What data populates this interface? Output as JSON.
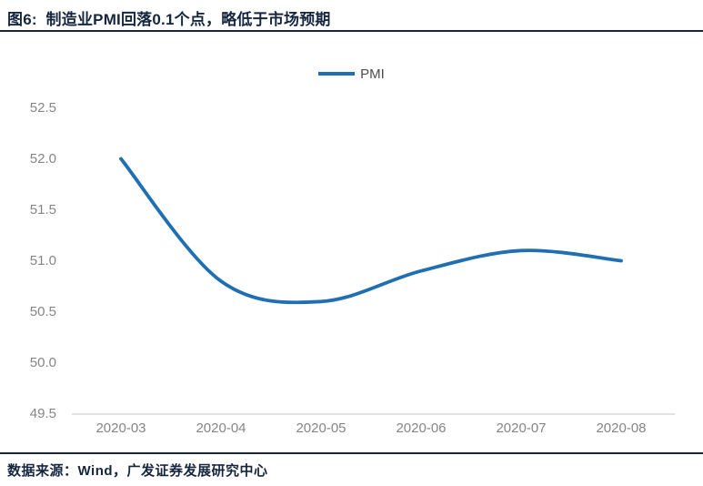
{
  "header": {
    "title": "图6:  制造业PMI回落0.1个点，略低于市场预期"
  },
  "legend": {
    "label": "PMI"
  },
  "footer": {
    "source": "数据来源：Wind，广发证券发展研究中心"
  },
  "colors": {
    "line": "#1f6fb2",
    "title": "#16263f",
    "tick": "#858585",
    "axis": "#d9d9d9",
    "legend_text": "#4d4d4d"
  },
  "chart_data": {
    "type": "line",
    "title": "制造业PMI回落0.1个点，略低于市场预期",
    "categories": [
      "2020-03",
      "2020-04",
      "2020-05",
      "2020-06",
      "2020-07",
      "2020-08"
    ],
    "series": [
      {
        "name": "PMI",
        "values": [
          52.0,
          50.8,
          50.6,
          50.9,
          51.1,
          51.0
        ]
      }
    ],
    "xlabel": "",
    "ylabel": "",
    "ylim": [
      49.5,
      52.5
    ],
    "ytick_step": 0.5,
    "yticks": [
      "49.5",
      "50.0",
      "50.5",
      "51.0",
      "51.5",
      "52.0",
      "52.5"
    ],
    "grid": false,
    "smooth": true,
    "legend_position": "top-center"
  }
}
